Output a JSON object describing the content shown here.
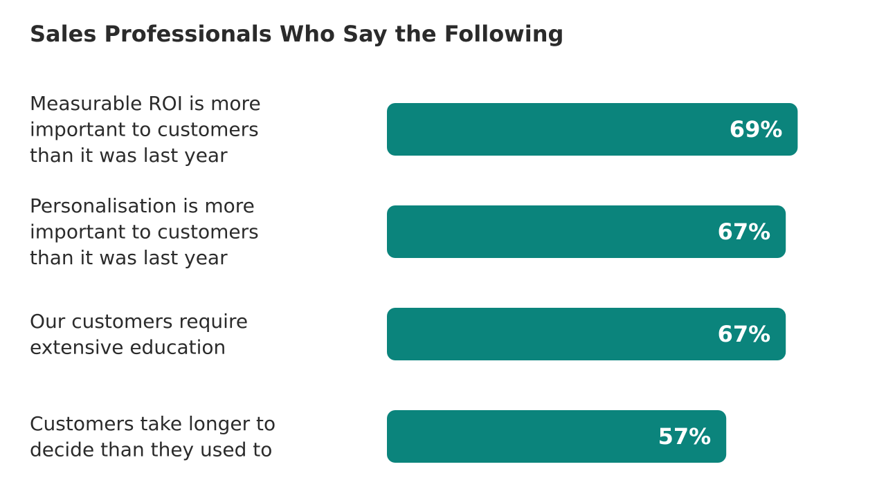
{
  "chart_data": {
    "type": "bar",
    "orientation": "horizontal",
    "title": "Sales Professionals Who Say the Following",
    "categories": [
      [
        "Measurable ROI is more",
        "important to customers",
        "than it was last year"
      ],
      [
        "Personalisation is more",
        "important to customers",
        "than it was last year"
      ],
      [
        "Our customers require",
        "extensive education"
      ],
      [
        "Customers take longer to",
        "decide than they used to"
      ]
    ],
    "values": [
      69,
      67,
      67,
      57
    ],
    "value_labels": [
      "69%",
      "67%",
      "67%",
      "57%"
    ],
    "unit": "%",
    "grid": false,
    "legend": "none",
    "bar_color": "#0b847c",
    "label_color": "#ffffff",
    "text_color": "#2b2b2b"
  }
}
